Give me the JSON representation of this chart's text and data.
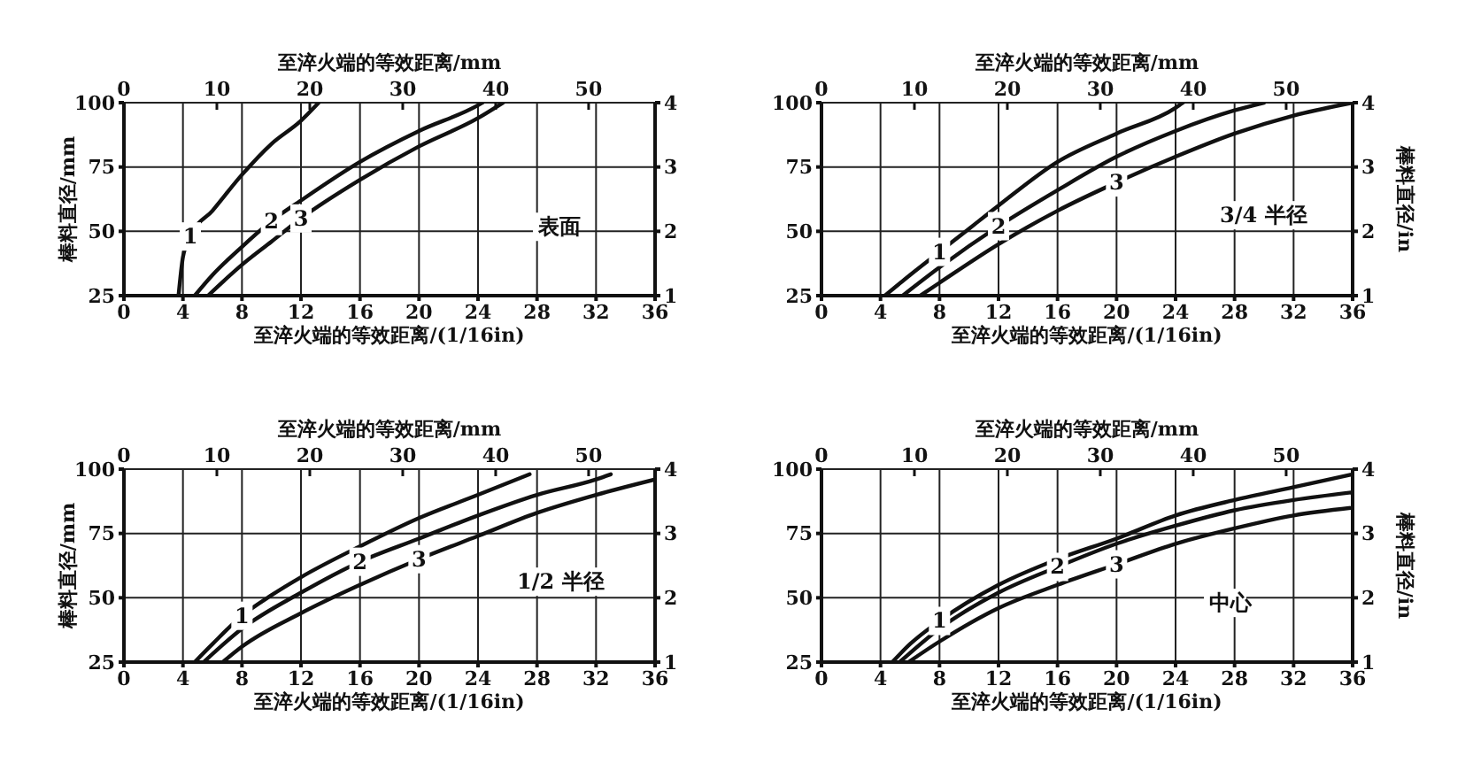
{
  "chart_data": [
    {
      "type": "line",
      "xlabel": "至淬火端的等效距离/(1/16in)",
      "x2label": "至淬火端的等效距离/mm",
      "ylabel": "棒料直径/mm",
      "xlim": [
        0,
        36
      ],
      "xticks": [
        0,
        4,
        8,
        12,
        16,
        20,
        24,
        28,
        32,
        36
      ],
      "x2lim": [
        0,
        57.15
      ],
      "x2ticks": [
        0,
        10,
        20,
        30,
        40,
        50
      ],
      "ylim": [
        25,
        100
      ],
      "yticks": [
        25,
        50,
        75,
        100
      ],
      "y2lim": [
        1,
        4
      ],
      "y2ticks": [
        1,
        2,
        3,
        4
      ],
      "grid": true,
      "marker": "none",
      "line_style": "solid",
      "annotations": [
        "表面"
      ],
      "series": [
        {
          "name": "1",
          "color": "#111111",
          "x": [
            3.7,
            4,
            4.5,
            6,
            8,
            10,
            12,
            13.2
          ],
          "values": [
            25,
            40,
            48,
            58,
            72,
            84,
            93,
            100
          ]
        },
        {
          "name": "2",
          "color": "#111111",
          "x": [
            4.8,
            6,
            8,
            10,
            12,
            16,
            20,
            24,
            24.3
          ],
          "values": [
            25,
            33,
            44,
            54,
            62,
            77,
            89,
            99,
            100
          ]
        },
        {
          "name": "3",
          "color": "#111111",
          "x": [
            5.7,
            8,
            10,
            12,
            16,
            20,
            24,
            25.7
          ],
          "values": [
            25,
            37,
            46,
            55,
            70,
            83,
            94,
            100
          ]
        }
      ]
    },
    {
      "type": "line",
      "xlabel": "至淬火端的等效距离/(1/16in)",
      "x2label": "至淬火端的等效距离/mm",
      "y2label": "棒料直径/in",
      "xlim": [
        0,
        36
      ],
      "xticks": [
        0,
        4,
        8,
        12,
        16,
        20,
        24,
        28,
        32,
        36
      ],
      "x2lim": [
        0,
        57.15
      ],
      "x2ticks": [
        0,
        10,
        20,
        30,
        40,
        50
      ],
      "ylim": [
        25,
        100
      ],
      "yticks": [
        25,
        50,
        75,
        100
      ],
      "y2lim": [
        1,
        4
      ],
      "y2ticks": [
        1,
        2,
        3,
        4
      ],
      "grid": true,
      "marker": "none",
      "line_style": "solid",
      "annotations": [
        "3/4 半径"
      ],
      "series": [
        {
          "name": "1",
          "color": "#111111",
          "x": [
            4.3,
            6,
            8,
            10,
            12,
            16,
            20,
            24,
            24.5
          ],
          "values": [
            25,
            33,
            42,
            51,
            60,
            77,
            88,
            98,
            100
          ]
        },
        {
          "name": "2",
          "color": "#111111",
          "x": [
            5.5,
            8,
            12,
            16,
            20,
            24,
            28,
            30
          ],
          "values": [
            25,
            36,
            52,
            66,
            79,
            89,
            97,
            100
          ]
        },
        {
          "name": "3",
          "color": "#111111",
          "x": [
            6.7,
            8,
            12,
            16,
            20,
            24,
            28,
            32,
            36
          ],
          "values": [
            25,
            30,
            45,
            58,
            69,
            79,
            88,
            95,
            100
          ]
        }
      ]
    },
    {
      "type": "line",
      "xlabel": "至淬火端的等效距离/(1/16in)",
      "x2label": "至淬火端的等效距离/mm",
      "ylabel": "棒料直径/mm",
      "xlim": [
        0,
        36
      ],
      "xticks": [
        0,
        4,
        8,
        12,
        16,
        20,
        24,
        28,
        32,
        36
      ],
      "x2lim": [
        0,
        57.15
      ],
      "x2ticks": [
        0,
        10,
        20,
        30,
        40,
        50
      ],
      "ylim": [
        25,
        100
      ],
      "yticks": [
        25,
        50,
        75,
        100
      ],
      "y2lim": [
        1,
        4
      ],
      "y2ticks": [
        1,
        2,
        3,
        4
      ],
      "grid": true,
      "marker": "none",
      "line_style": "solid",
      "annotations": [
        "1/2 半径"
      ],
      "series": [
        {
          "name": "1",
          "color": "#111111",
          "x": [
            4.8,
            6,
            8,
            10,
            12,
            16,
            20,
            24,
            27.5
          ],
          "values": [
            25,
            32,
            43,
            51,
            58,
            70,
            81,
            90,
            98
          ]
        },
        {
          "name": "2",
          "color": "#111111",
          "x": [
            5.4,
            8,
            12,
            16,
            20,
            24,
            28,
            32,
            33
          ],
          "values": [
            25,
            38,
            52,
            64,
            73,
            82,
            90,
            96,
            98
          ]
        },
        {
          "name": "3",
          "color": "#111111",
          "x": [
            6.7,
            8,
            12,
            16,
            20,
            24,
            28,
            32,
            36
          ],
          "values": [
            25,
            31,
            44,
            55,
            65,
            74,
            83,
            90,
            96
          ]
        }
      ]
    },
    {
      "type": "line",
      "xlabel": "至淬火端的等效距离/(1/16in)",
      "x2label": "至淬火端的等效距离/mm",
      "y2label": "棒料直径/in",
      "xlim": [
        0,
        36
      ],
      "xticks": [
        0,
        4,
        8,
        12,
        16,
        20,
        24,
        28,
        32,
        36
      ],
      "x2lim": [
        0,
        57.15
      ],
      "x2ticks": [
        0,
        10,
        20,
        30,
        40,
        50
      ],
      "ylim": [
        25,
        100
      ],
      "yticks": [
        25,
        50,
        75,
        100
      ],
      "y2lim": [
        1,
        4
      ],
      "y2ticks": [
        1,
        2,
        3,
        4
      ],
      "grid": true,
      "marker": "none",
      "line_style": "solid",
      "annotations": [
        "中心"
      ],
      "series": [
        {
          "name": "1",
          "color": "#111111",
          "x": [
            4.8,
            6,
            8,
            12,
            16,
            20,
            24,
            28,
            32,
            36
          ],
          "values": [
            25,
            32,
            41,
            55,
            65,
            73,
            82,
            88,
            93,
            98
          ]
        },
        {
          "name": "2",
          "color": "#111111",
          "x": [
            5.3,
            8,
            12,
            16,
            20,
            24,
            28,
            32,
            36
          ],
          "values": [
            25,
            38,
            52,
            62,
            71,
            78,
            84,
            88,
            91
          ]
        },
        {
          "name": "3",
          "color": "#111111",
          "x": [
            5.9,
            8,
            12,
            16,
            20,
            24,
            28,
            32,
            36
          ],
          "values": [
            25,
            33,
            46,
            55,
            63,
            71,
            77,
            82,
            85
          ]
        }
      ]
    }
  ]
}
